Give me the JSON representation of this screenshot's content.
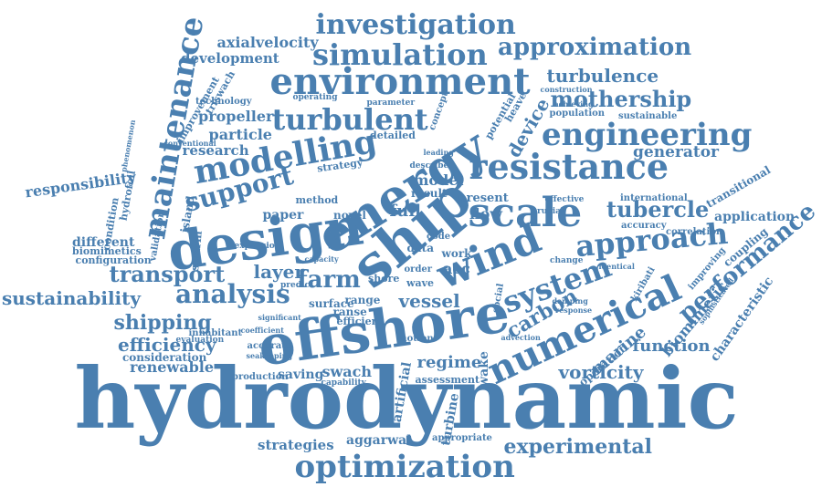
{
  "colors": {
    "word": "#4a7fb0",
    "background": "#ffffff"
  },
  "words": [
    "hydrodynamic",
    "offshore",
    "design",
    "energy",
    "ship",
    "wind",
    "numerical",
    "resistance",
    "scale",
    "maintenance",
    "environment",
    "engineering",
    "modelling",
    "optimization",
    "simulation",
    "investigation",
    "approximation",
    "turbulent",
    "approach",
    "system",
    "analysis",
    "experimental",
    "support",
    "transport",
    "mothership",
    "performance",
    "turbulence",
    "farm",
    "tubercle",
    "sustainability",
    "shipping",
    "efficiency",
    "vorticity",
    "carbon",
    "layer",
    "renewable",
    "responsibility",
    "generator",
    "application",
    "propeller",
    "particle",
    "development",
    "axialvelocity",
    "research",
    "vessel",
    "flow",
    "device",
    "model",
    "regime",
    "function",
    "marine",
    "biomimetic",
    "characteristic",
    "strategies",
    "aggarwal",
    "swach",
    "saving",
    "wake",
    "turbine",
    "artificial",
    "full",
    "paper",
    "acc",
    "different",
    "swarm",
    "technology",
    "transitional",
    "coupling",
    "accuracy",
    "correlation",
    "international",
    "sustainable",
    "population",
    "consideration",
    "island",
    "hydrofoil",
    "condition",
    "configuration",
    "biomimetics",
    "validation",
    "improvement",
    "triswach",
    "conventional",
    "phenomenon",
    "strategy",
    "detailed",
    "method",
    "operating",
    "parameter",
    "concept",
    "potential",
    "heave",
    "construction",
    "achieving",
    "present",
    "novel",
    "result",
    "operation",
    "accurate",
    "seakeeping",
    "inhabitant",
    "evaluation",
    "production",
    "capability",
    "assessment",
    "appropriate",
    "improving",
    "sophisticated",
    "expansion",
    "coefficient",
    "significant",
    "damping",
    "response",
    "motion",
    "range",
    "ranse",
    "efficient",
    "surface",
    "social",
    "change",
    "advection",
    "identical",
    "kiribati",
    "effective",
    "code",
    "data",
    "work",
    "order",
    "wave",
    "shore",
    "predict",
    "describe",
    "crucial",
    "capacity",
    "leading"
  ]
}
